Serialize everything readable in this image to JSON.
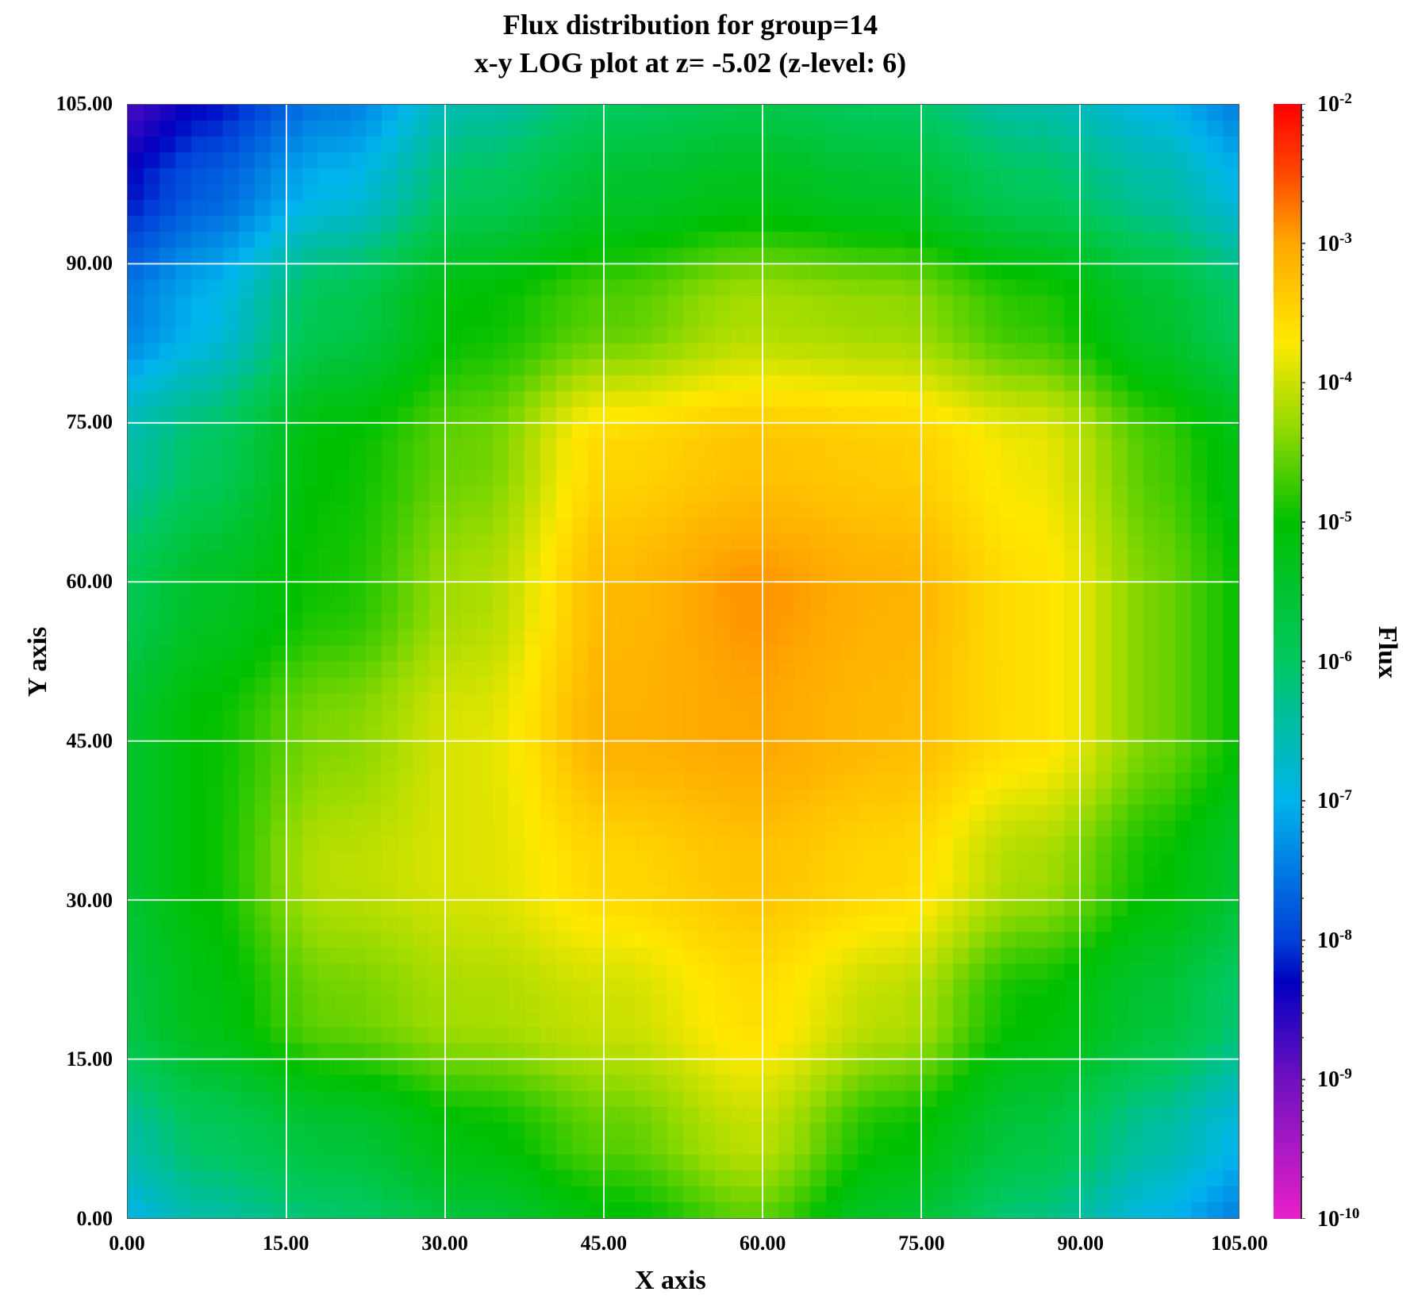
{
  "chart_data": {
    "type": "heatmap",
    "title": "Flux distribution for group=14",
    "subtitle": "x-y LOG plot at z=  -5.02 (z-level:  6)",
    "xlabel": "X axis",
    "ylabel": "Y axis",
    "xlim": [
      0,
      105
    ],
    "ylim": [
      0,
      105
    ],
    "xticks": [
      "0.00",
      "15.00",
      "30.00",
      "45.00",
      "60.00",
      "75.00",
      "90.00",
      "105.00"
    ],
    "yticks": [
      "0.00",
      "15.00",
      "30.00",
      "45.00",
      "60.00",
      "75.00",
      "90.00",
      "105.00"
    ],
    "grid": true,
    "colorbar": {
      "label": "Flux",
      "scale": "log",
      "range": [
        1e-10,
        0.01
      ],
      "ticks": [
        {
          "base": "10",
          "exp": "-2"
        },
        {
          "base": "10",
          "exp": "-3"
        },
        {
          "base": "10",
          "exp": "-4"
        },
        {
          "base": "10",
          "exp": "-5"
        },
        {
          "base": "10",
          "exp": "-6"
        },
        {
          "base": "10",
          "exp": "-7"
        },
        {
          "base": "10",
          "exp": "-8"
        },
        {
          "base": "10",
          "exp": "-9"
        },
        {
          "base": "10",
          "exp": "-10"
        }
      ],
      "colormap": [
        {
          "log10": -10,
          "color": "#e820c8"
        },
        {
          "log10": -9,
          "color": "#7010c0"
        },
        {
          "log10": -8.3,
          "color": "#0000c0"
        },
        {
          "log10": -8,
          "color": "#0040d8"
        },
        {
          "log10": -7,
          "color": "#00b4ec"
        },
        {
          "log10": -6.3,
          "color": "#00c090"
        },
        {
          "log10": -6,
          "color": "#00c860"
        },
        {
          "log10": -5,
          "color": "#00c000"
        },
        {
          "log10": -4.3,
          "color": "#98da00"
        },
        {
          "log10": -3.7,
          "color": "#ffe800"
        },
        {
          "log10": -3,
          "color": "#ffa800"
        },
        {
          "log10": -2.5,
          "color": "#ff4800"
        },
        {
          "log10": -2,
          "color": "#ff0000"
        }
      ]
    },
    "grid_x": [
      6.5,
      19.7,
      32.8,
      45.9,
      59.0,
      72.2,
      85.3,
      98.4
    ],
    "grid_y": [
      98.4,
      85.3,
      72.2,
      59.0,
      45.9,
      32.8,
      19.7,
      6.5
    ],
    "log10_flux": [
      [
        -7.8,
        -7.0,
        -6.0,
        -5.5,
        -5.3,
        -5.5,
        -6.0,
        -6.5
      ],
      [
        -7.0,
        -5.8,
        -5.0,
        -4.6,
        -4.2,
        -4.3,
        -4.8,
        -5.5
      ],
      [
        -6.0,
        -5.0,
        -4.5,
        -3.5,
        -3.3,
        -3.4,
        -3.8,
        -4.7
      ],
      [
        -5.4,
        -4.9,
        -4.2,
        -3.2,
        -2.9,
        -3.1,
        -3.6,
        -4.5
      ],
      [
        -5.0,
        -4.4,
        -3.9,
        -3.1,
        -3.0,
        -3.2,
        -3.6,
        -4.5
      ],
      [
        -5.0,
        -4.1,
        -3.9,
        -3.5,
        -3.3,
        -3.5,
        -4.2,
        -5.0
      ],
      [
        -5.2,
        -4.5,
        -4.2,
        -4.0,
        -3.6,
        -4.1,
        -5.0,
        -5.6
      ],
      [
        -6.0,
        -5.6,
        -5.1,
        -4.6,
        -4.1,
        -5.0,
        -5.7,
        -6.5
      ]
    ]
  }
}
